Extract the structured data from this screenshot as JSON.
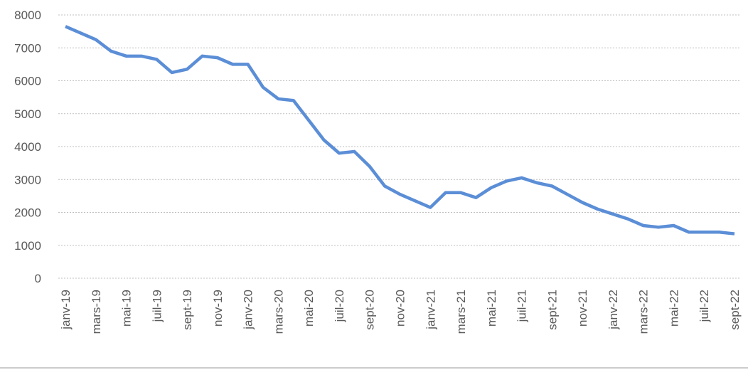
{
  "chart_data": {
    "type": "line",
    "categories": [
      "janv-19",
      null,
      "mars-19",
      null,
      "mai-19",
      null,
      "juil-19",
      null,
      "sept-19",
      null,
      "nov-19",
      null,
      "janv-20",
      null,
      "mars-20",
      null,
      "mai-20",
      null,
      "juil-20",
      null,
      "sept-20",
      null,
      "nov-20",
      null,
      "janv-21",
      null,
      "mars-21",
      null,
      "mai-21",
      null,
      "juil-21",
      null,
      "sept-21",
      null,
      "nov-21",
      null,
      "janv-22",
      null,
      "mars-22",
      null,
      "mai-22",
      null,
      "juil-22",
      null,
      "sept-22"
    ],
    "series": [
      {
        "color": "#5b8ed6",
        "values": [
          7650,
          7450,
          7250,
          6900,
          6750,
          6750,
          6650,
          6250,
          6350,
          6750,
          6700,
          6500,
          6500,
          5800,
          5450,
          5400,
          4800,
          4200,
          3800,
          3850,
          3400,
          2800,
          2550,
          2350,
          2150,
          2600,
          2600,
          2450,
          2750,
          2950,
          3050,
          2900,
          2800,
          2550,
          2300,
          2100,
          1950,
          1800,
          1600,
          1550,
          1600,
          1400,
          1400,
          1400,
          1350
        ]
      }
    ],
    "ylim": [
      0,
      8000
    ],
    "yticks": [
      0,
      1000,
      2000,
      3000,
      4000,
      5000,
      6000,
      7000,
      8000
    ],
    "grid": true
  }
}
